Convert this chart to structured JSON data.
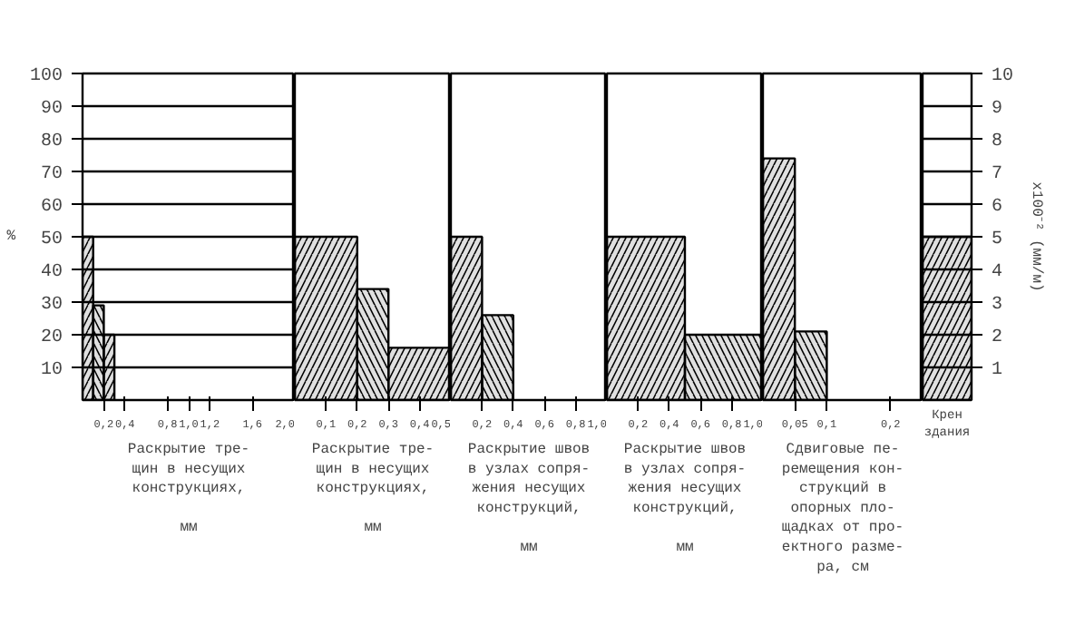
{
  "chart_data": [
    {
      "type": "histogram",
      "bins": [
        0,
        0.1,
        0.2,
        0.3
      ],
      "values": [
        50,
        29,
        20
      ],
      "color": "#000000",
      "xlim": [
        0,
        2.0
      ],
      "xticks": [
        {
          "value": 0.2,
          "label": "0,2"
        },
        {
          "value": 0.4,
          "label": "0,4"
        },
        {
          "value": 0.8,
          "label": "0,8"
        },
        {
          "value": 1.0,
          "label": "1,0"
        },
        {
          "value": 1.2,
          "label": "1,2"
        },
        {
          "value": 1.6,
          "label": "1,6"
        },
        {
          "value": 2.0,
          "label": "2,0"
        }
      ],
      "ylim": [
        0,
        100
      ],
      "yticks": [
        10,
        20,
        30,
        40,
        50,
        60,
        70,
        80,
        90,
        100
      ],
      "ylabel": "%",
      "xlabel": "Раскрытие тре-\nщин в несущих\nконструкциях,\n\nмм",
      "grid": "y"
    },
    {
      "type": "histogram",
      "bins": [
        0,
        0.2,
        0.3,
        0.5
      ],
      "values": [
        50,
        34,
        16
      ],
      "color": "#000000",
      "xlim": [
        0,
        0.5
      ],
      "xticks": [
        {
          "value": 0.1,
          "label": "0,1"
        },
        {
          "value": 0.2,
          "label": "0,2"
        },
        {
          "value": 0.3,
          "label": "0,3"
        },
        {
          "value": 0.4,
          "label": "0,4"
        },
        {
          "value": 0.5,
          "label": "0,5"
        }
      ],
      "ylim": [
        0,
        100
      ],
      "tick_labels": "x",
      "xlabel": "Раскрытие тре-\nщин в несущих\nконструкциях,\n\nмм",
      "grid": "y"
    },
    {
      "type": "histogram",
      "bins": [
        0,
        0.2,
        0.4
      ],
      "values": [
        50,
        26
      ],
      "color": "#000000",
      "xlim": [
        0,
        1.0
      ],
      "xticks": [
        {
          "value": 0.2,
          "label": "0,2"
        },
        {
          "value": 0.4,
          "label": "0,4"
        },
        {
          "value": 0.6,
          "label": "0,6"
        },
        {
          "value": 0.8,
          "label": "0,8"
        },
        {
          "value": 1.0,
          "label": "1,0"
        }
      ],
      "ylim": [
        0,
        100
      ],
      "tick_labels": "x",
      "xlabel": "Раскрытие швов\nв узлах сопря-\nжения несущих\nконструкций,\n\nмм",
      "grid": "y"
    },
    {
      "type": "histogram",
      "bins": [
        0,
        0.5,
        1.0
      ],
      "values": [
        50,
        20
      ],
      "color": "#000000",
      "xlim": [
        0,
        1.0
      ],
      "xticks": [
        {
          "value": 0.2,
          "label": "0,2"
        },
        {
          "value": 0.4,
          "label": "0,4"
        },
        {
          "value": 0.6,
          "label": "0,6"
        },
        {
          "value": 0.8,
          "label": "0,8"
        },
        {
          "value": 1.0,
          "label": "1,0"
        }
      ],
      "ylim": [
        0,
        100
      ],
      "tick_labels": "x",
      "xlabel": "Раскрытие швов\nв узлах сопря-\nжения несущих\nконструкций,\n\nмм",
      "grid": "y"
    },
    {
      "type": "histogram",
      "bins": [
        0,
        0.05,
        0.1
      ],
      "values": [
        74,
        21
      ],
      "color": "#000000",
      "xlim": [
        0,
        0.25
      ],
      "xticks": [
        {
          "value": 0.05,
          "label": "0,05"
        },
        {
          "value": 0.1,
          "label": "0,1"
        },
        {
          "value": 0.2,
          "label": "0,2"
        }
      ],
      "ylim": [
        0,
        100
      ],
      "tick_labels": "x",
      "xlabel": "Сдвиговые пе-\nремещения кон-\nструкций в\nопорных пло-\nщадках от про-\nектного разме-\nра, см",
      "grid": "y"
    },
    {
      "type": "bar",
      "categories": [
        null
      ],
      "series": [
        {
          "color": "#000000",
          "values": [
            5
          ]
        }
      ],
      "ylim": [
        0,
        10
      ],
      "yticks": [
        1,
        2,
        3,
        4,
        5,
        6,
        7,
        8,
        9,
        10
      ],
      "ylabel": "x100⁻² (мм/м)",
      "xlabel": "Крен здания",
      "grid": "y"
    }
  ]
}
